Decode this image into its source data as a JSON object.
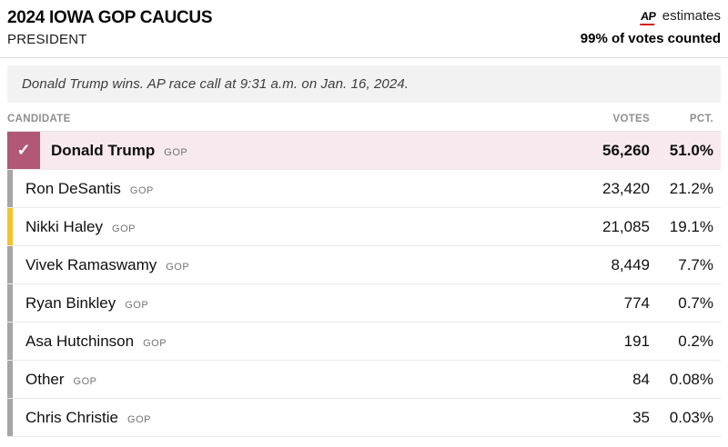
{
  "header": {
    "title": "2024 IOWA GOP CAUCUS",
    "subtitle": "PRESIDENT",
    "ap_logo": "AP",
    "estimates_label": "estimates",
    "votes_counted": "99% of votes counted"
  },
  "banner": {
    "text": "Donald Trump wins. AP race call at 9:31 a.m. on Jan. 16, 2024."
  },
  "table": {
    "columns": {
      "candidate": "CANDIDATE",
      "votes": "VOTES",
      "pct": "PCT."
    },
    "winner_check": "✓",
    "rows": [
      {
        "name": "Donald Trump",
        "party": "GOP",
        "votes": "56,260",
        "pct": "51.0%",
        "winner": true,
        "bar_color": "#b15876"
      },
      {
        "name": "Ron DeSantis",
        "party": "GOP",
        "votes": "23,420",
        "pct": "21.2%",
        "winner": false,
        "bar_color": "#a6a6a6"
      },
      {
        "name": "Nikki Haley",
        "party": "GOP",
        "votes": "21,085",
        "pct": "19.1%",
        "winner": false,
        "bar_color": "#f3c32c"
      },
      {
        "name": "Vivek Ramaswamy",
        "party": "GOP",
        "votes": "8,449",
        "pct": "7.7%",
        "winner": false,
        "bar_color": "#a6a6a6"
      },
      {
        "name": "Ryan Binkley",
        "party": "GOP",
        "votes": "774",
        "pct": "0.7%",
        "winner": false,
        "bar_color": "#a6a6a6"
      },
      {
        "name": "Asa Hutchinson",
        "party": "GOP",
        "votes": "191",
        "pct": "0.2%",
        "winner": false,
        "bar_color": "#a6a6a6"
      },
      {
        "name": "Other",
        "party": "GOP",
        "votes": "84",
        "pct": "0.08%",
        "winner": false,
        "bar_color": "#a6a6a6"
      },
      {
        "name": "Chris Christie",
        "party": "GOP",
        "votes": "35",
        "pct": "0.03%",
        "winner": false,
        "bar_color": "#a6a6a6"
      }
    ]
  },
  "colors": {
    "winner_row_bg": "#f7e9ee",
    "winner_accent": "#b15876",
    "haley_accent": "#f3c32c",
    "default_accent": "#a6a6a6",
    "ap_red": "#d62021",
    "banner_bg": "#f2f2f2"
  }
}
